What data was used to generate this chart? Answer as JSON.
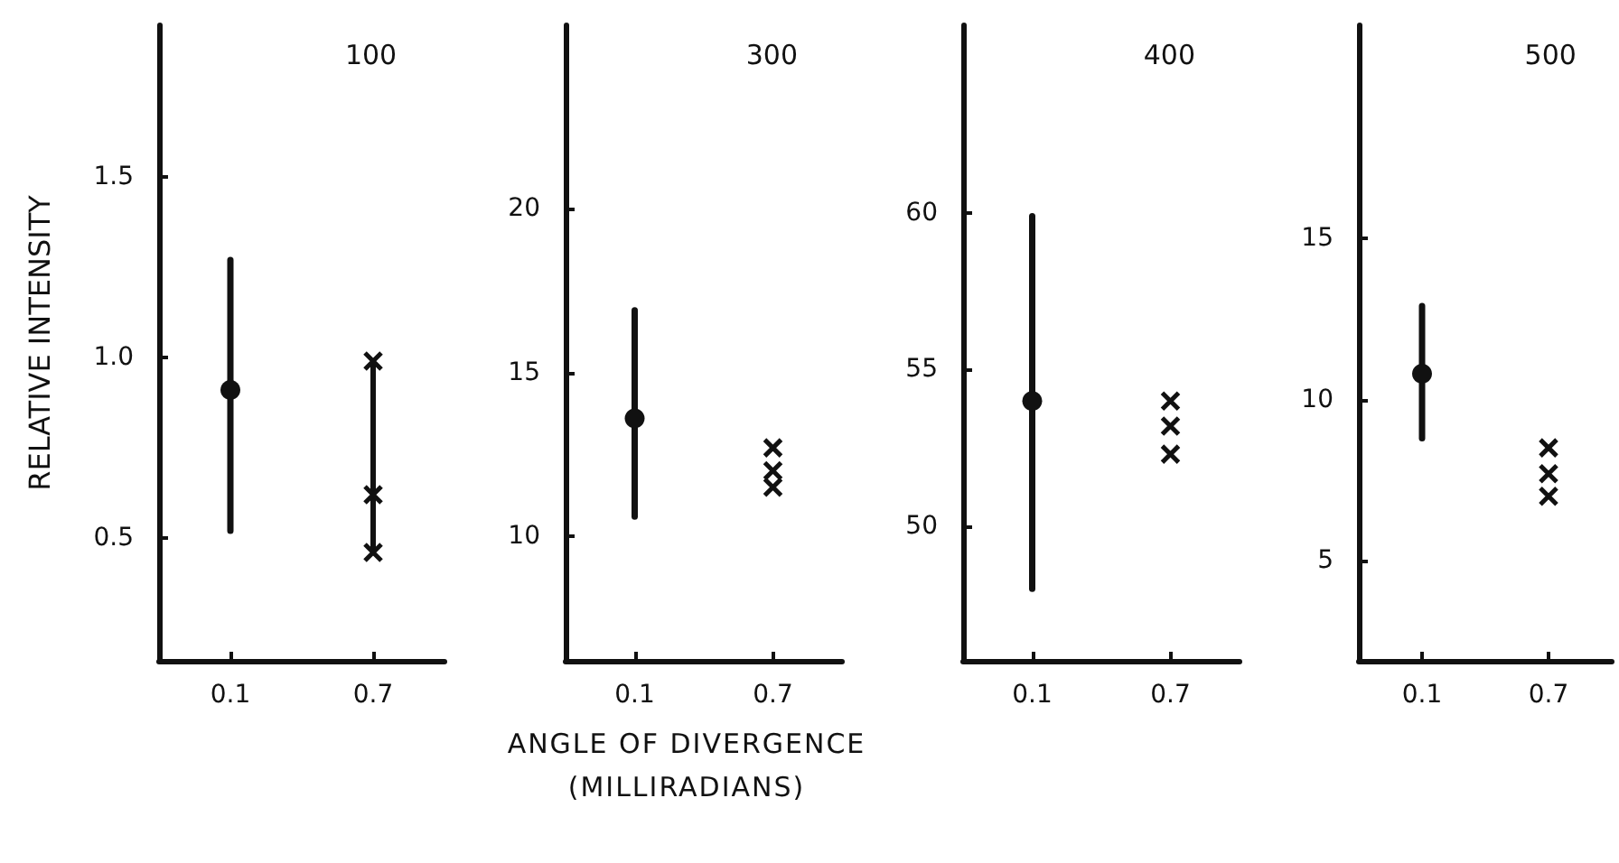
{
  "chart_data": [
    {
      "type": "scatter",
      "title": "100",
      "ylabel": "RELATIVE INTENSITY",
      "categories": [
        "0.1",
        "0.7"
      ],
      "ylim": [
        0.16,
        1.92
      ],
      "yticks": [
        0.5,
        {
          "value": 1,
          "label": "1.0"
        },
        1.5
      ],
      "series": [
        {
          "color": "#111111",
          "marker": "circle",
          "values": [
            0.91,
            null
          ],
          "errors": [
            [
              0.52,
              1.27
            ],
            null
          ]
        },
        {
          "type": "line",
          "color": "#111111",
          "marker": "none",
          "x": [
            "0.7",
            "0.7"
          ],
          "values": [
            0.46,
            0.99
          ]
        },
        {
          "color": "#111111",
          "marker": "cross",
          "x": [
            "0.7",
            "0.7",
            "0.7"
          ],
          "values": [
            0.99,
            0.62,
            0.46
          ]
        }
      ]
    },
    {
      "type": "scatter",
      "title": "300",
      "xlabel": "ANGLE OF DIVERGENCE\n(MILLIRADIANS)",
      "categories": [
        "0.1",
        "0.7"
      ],
      "ylim": [
        6.2,
        25.6
      ],
      "yticks": [
        10,
        15,
        20
      ],
      "series": [
        {
          "color": "#111111",
          "marker": "circle",
          "values": [
            13.6,
            null
          ],
          "errors": [
            [
              10.6,
              16.9
            ],
            null
          ]
        },
        {
          "color": "#111111",
          "marker": "cross",
          "x": [
            "0.7",
            "0.7",
            "0.7"
          ],
          "values": [
            12.7,
            12.0,
            11.5
          ]
        }
      ]
    },
    {
      "type": "scatter",
      "title": "400",
      "categories": [
        "0.1",
        "0.7"
      ],
      "ylim": [
        45.7,
        66.0
      ],
      "yticks": [
        50,
        55,
        60
      ],
      "series": [
        {
          "color": "#111111",
          "marker": "circle",
          "values": [
            54.0,
            null
          ],
          "errors": [
            [
              48.0,
              59.9
            ],
            null
          ]
        },
        {
          "color": "#111111",
          "marker": "cross",
          "x": [
            "0.7",
            "0.7",
            "0.7"
          ],
          "values": [
            54.0,
            53.2,
            52.3
          ]
        }
      ]
    },
    {
      "type": "scatter",
      "title": "500",
      "categories": [
        "0.1",
        "0.7"
      ],
      "ylim": [
        1.9,
        21.6
      ],
      "yticks": [
        5,
        10,
        15
      ],
      "series": [
        {
          "color": "#111111",
          "marker": "circle",
          "values": [
            10.8,
            null
          ],
          "errors": [
            [
              8.8,
              12.9
            ],
            null
          ]
        },
        {
          "color": "#111111",
          "marker": "cross",
          "x": [
            "0.7",
            "0.7",
            "0.7"
          ],
          "values": [
            8.5,
            7.7,
            7.0
          ]
        }
      ]
    }
  ]
}
